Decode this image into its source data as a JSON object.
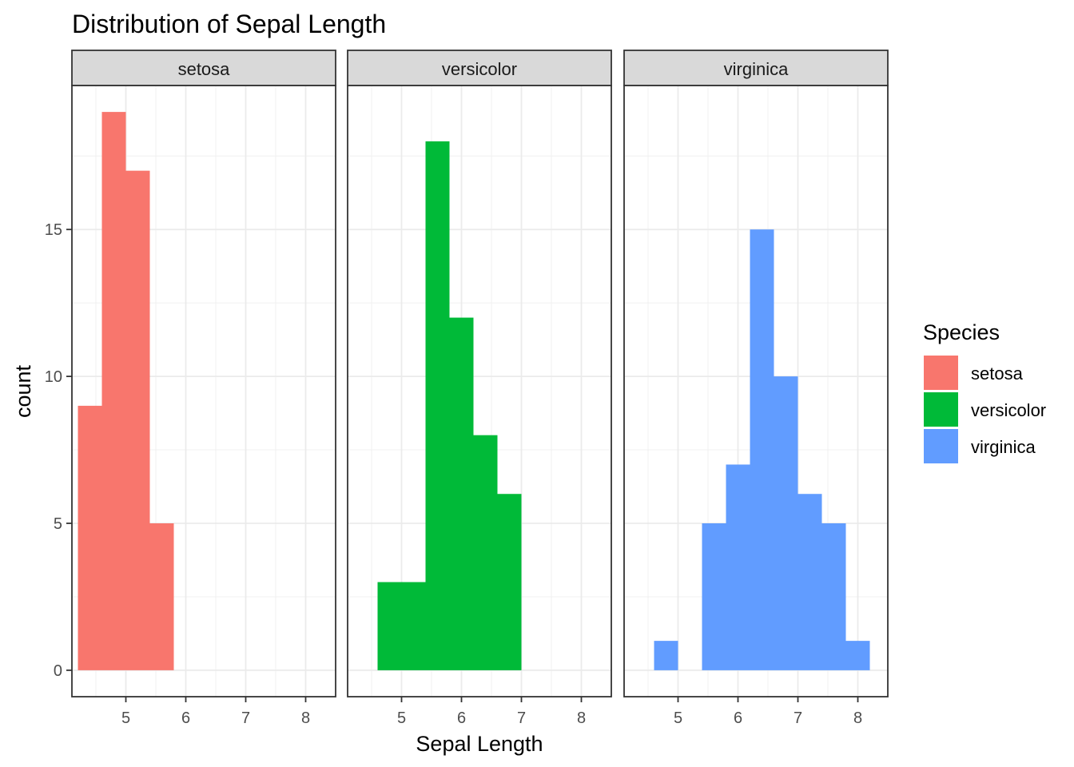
{
  "chart_data": {
    "type": "bar",
    "subtype": "faceted-histogram",
    "title": "Distribution of Sepal Length",
    "xlabel": "Sepal Length",
    "ylabel": "count",
    "xlim": [
      4.1,
      8.5
    ],
    "ylim": [
      -0.9,
      19.9
    ],
    "x_ticks": [
      5,
      6,
      7,
      8
    ],
    "y_ticks": [
      0,
      5,
      10,
      15
    ],
    "grid": true,
    "bin_width": 0.4,
    "legend": {
      "title": "Species",
      "position": "right"
    },
    "facets": [
      {
        "name": "setosa",
        "color": "#F8766D",
        "bins": [
          {
            "x": 4.4,
            "count": 9
          },
          {
            "x": 4.8,
            "count": 19
          },
          {
            "x": 5.2,
            "count": 17
          },
          {
            "x": 5.6,
            "count": 5
          }
        ]
      },
      {
        "name": "versicolor",
        "color": "#00BA38",
        "bins": [
          {
            "x": 4.8,
            "count": 3
          },
          {
            "x": 5.2,
            "count": 3
          },
          {
            "x": 5.6,
            "count": 18
          },
          {
            "x": 6.0,
            "count": 12
          },
          {
            "x": 6.4,
            "count": 8
          },
          {
            "x": 6.8,
            "count": 6
          }
        ]
      },
      {
        "name": "virginica",
        "color": "#619CFF",
        "bins": [
          {
            "x": 4.8,
            "count": 1
          },
          {
            "x": 5.6,
            "count": 5
          },
          {
            "x": 6.0,
            "count": 7
          },
          {
            "x": 6.4,
            "count": 15
          },
          {
            "x": 6.8,
            "count": 10
          },
          {
            "x": 7.2,
            "count": 6
          },
          {
            "x": 7.6,
            "count": 5
          },
          {
            "x": 8.0,
            "count": 1
          }
        ]
      }
    ]
  }
}
